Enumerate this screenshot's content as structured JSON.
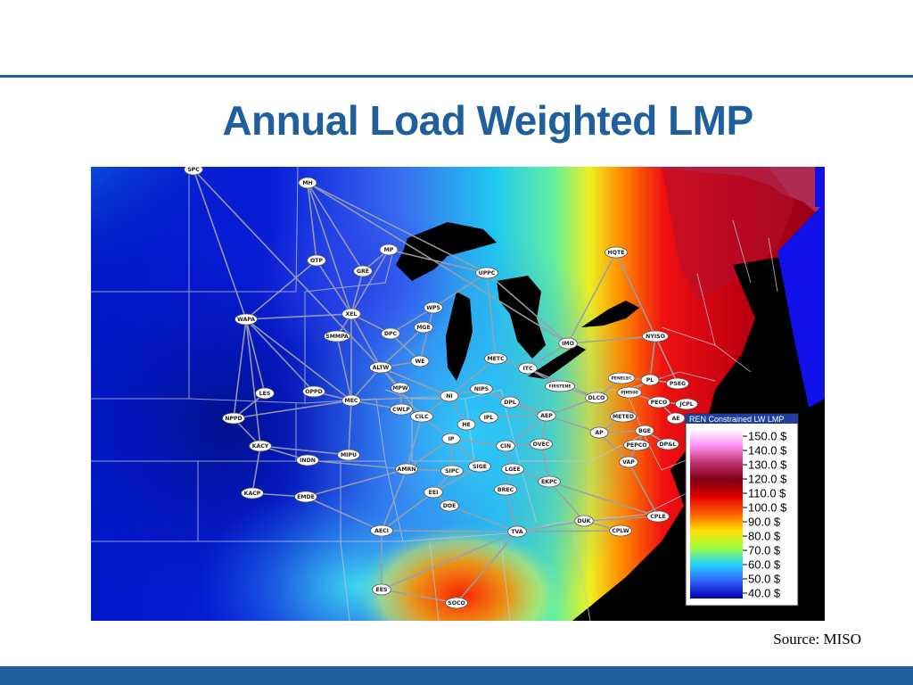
{
  "slide": {
    "title": "Annual Load Weighted LMP",
    "source": "Source: MISO"
  },
  "colors": {
    "accent": "#1f5f9e"
  },
  "legend": {
    "title": "REN Constrained LW LMP",
    "ticks": [
      "150.0 $",
      "140.0 $",
      "130.0 $",
      "120.0 $",
      "110.0 $",
      "100.0 $",
      "90.0 $",
      "80.0 $",
      "70.0 $",
      "60.0 $",
      "50.0 $",
      "40.0 $"
    ]
  },
  "nodes": [
    {
      "label": "SPC"
    },
    {
      "label": "MH"
    },
    {
      "label": "MP"
    },
    {
      "label": "OTP"
    },
    {
      "label": "GRE"
    },
    {
      "label": "UPPC"
    },
    {
      "label": "HQTE"
    },
    {
      "label": "WPS"
    },
    {
      "label": "XEL"
    },
    {
      "label": "MGE"
    },
    {
      "label": "WAPA"
    },
    {
      "label": "SMMPA"
    },
    {
      "label": "DPC"
    },
    {
      "label": "IMO"
    },
    {
      "label": "NYISO"
    },
    {
      "label": "WE"
    },
    {
      "label": "METC"
    },
    {
      "label": "ALTW"
    },
    {
      "label": "ITC"
    },
    {
      "label": "FIRSTENE"
    },
    {
      "label": "PENELEC"
    },
    {
      "label": "PL"
    },
    {
      "label": "PSEG"
    },
    {
      "label": "MPW"
    },
    {
      "label": "LES"
    },
    {
      "label": "OPPD"
    },
    {
      "label": "MEC"
    },
    {
      "label": "NIPS"
    },
    {
      "label": "PJM500"
    },
    {
      "label": "NI"
    },
    {
      "label": "DLCO"
    },
    {
      "label": "JCPL"
    },
    {
      "label": "PECO"
    },
    {
      "label": "CWLP"
    },
    {
      "label": "DPL"
    },
    {
      "label": "NPPD"
    },
    {
      "label": "CILC"
    },
    {
      "label": "AEP"
    },
    {
      "label": "IPL"
    },
    {
      "label": "METED"
    },
    {
      "label": "AE"
    },
    {
      "label": "HE"
    },
    {
      "label": "AP"
    },
    {
      "label": "BGE"
    },
    {
      "label": "IP"
    },
    {
      "label": "KACY"
    },
    {
      "label": "CIN"
    },
    {
      "label": "OVEC"
    },
    {
      "label": "PEPCO"
    },
    {
      "label": "DP&L"
    },
    {
      "label": "MIPU"
    },
    {
      "label": "INDN"
    },
    {
      "label": "AMRN"
    },
    {
      "label": "SIGE"
    },
    {
      "label": "SIPC"
    },
    {
      "label": "LGEE"
    },
    {
      "label": "VAP"
    },
    {
      "label": "EKPC"
    },
    {
      "label": "BREC"
    },
    {
      "label": "KACP"
    },
    {
      "label": "EMDE"
    },
    {
      "label": "EEI"
    },
    {
      "label": "DOE"
    },
    {
      "label": "DUK"
    },
    {
      "label": "CPLE"
    },
    {
      "label": "AECI"
    },
    {
      "label": "TVA"
    },
    {
      "label": "CPLW"
    },
    {
      "label": "EES"
    },
    {
      "label": "SOCO"
    }
  ]
}
